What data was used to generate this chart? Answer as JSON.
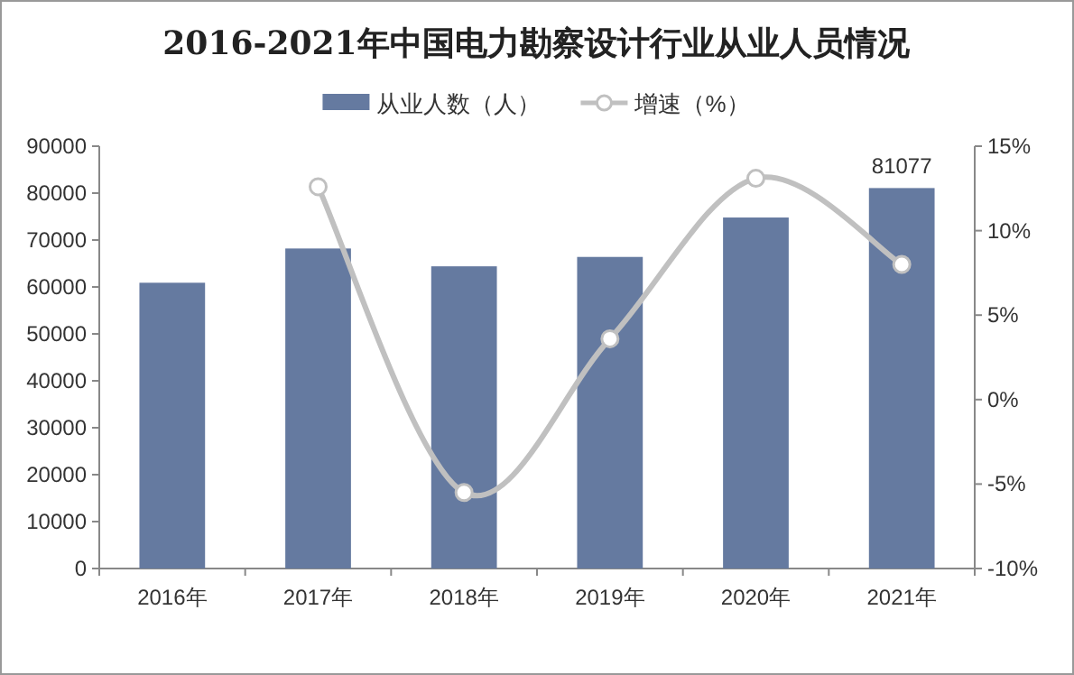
{
  "chart_data": {
    "type": "bar",
    "title": "2016-2021年中国电力勘察设计行业从业人员情况",
    "categories": [
      "2016年",
      "2017年",
      "2018年",
      "2019年",
      "2020年",
      "2021年"
    ],
    "series": [
      {
        "name": "从业人数（人）",
        "color": "#657aa0",
        "values": [
          60900,
          68200,
          64400,
          66400,
          74800,
          81077
        ],
        "value_labels": [
          null,
          null,
          null,
          null,
          null,
          "81077"
        ]
      },
      {
        "name": "增速（%）",
        "type": "line",
        "axis": "y2",
        "color": "#c0c0c0",
        "marker": "circle",
        "values": [
          null,
          12.6,
          -5.5,
          3.6,
          13.1,
          8.0
        ]
      }
    ],
    "ylim": [
      0,
      90000
    ],
    "yticks": [
      0,
      10000,
      20000,
      30000,
      40000,
      50000,
      60000,
      70000,
      80000,
      90000
    ],
    "y2lim": [
      -10,
      15
    ],
    "y2ticks": [
      {
        "value": -10,
        "label": "-10%"
      },
      {
        "value": -5,
        "label": "-5%"
      },
      {
        "value": 0,
        "label": "0%"
      },
      {
        "value": 5,
        "label": "5%"
      },
      {
        "value": 10,
        "label": "10%"
      },
      {
        "value": 15,
        "label": "15%"
      }
    ],
    "grid": false,
    "legend": "top"
  }
}
